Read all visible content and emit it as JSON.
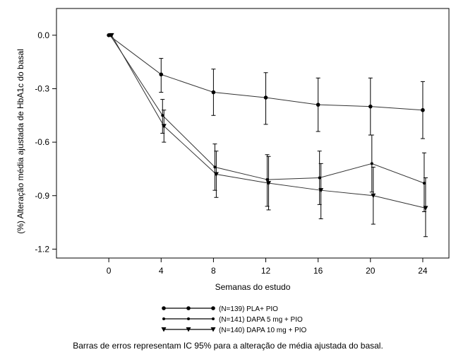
{
  "chart_data": {
    "type": "line",
    "title": "",
    "xlabel": "Semanas do estudo",
    "ylabel": "(%) Alteração média ajustada de HbA1c do basal",
    "xlim": [
      -4,
      26
    ],
    "ylim": [
      -1.25,
      0.15
    ],
    "x_ticks": [
      0,
      4,
      8,
      12,
      16,
      20,
      24
    ],
    "y_ticks": [
      0.0,
      -0.3,
      -0.6,
      -0.9,
      -1.2
    ],
    "y_tick_labels": [
      "0.0",
      "-0.3",
      "-0.6",
      "-0.9",
      "-1.2"
    ],
    "grid": false,
    "legend_placement": "bottom-center",
    "caption": "Barras de erros representam IC 95% para a alteração de média ajustada do basal.",
    "series": [
      {
        "name": "(N=139) PLA+ PIO",
        "marker": "circle",
        "x": [
          0,
          4,
          8,
          12,
          16,
          20,
          24
        ],
        "y": [
          0.0,
          -0.22,
          -0.32,
          -0.35,
          -0.39,
          -0.4,
          -0.42
        ],
        "err_low": [
          0.0,
          -0.32,
          -0.45,
          -0.5,
          -0.54,
          -0.56,
          -0.58
        ],
        "err_high": [
          0.0,
          -0.13,
          -0.19,
          -0.21,
          -0.24,
          -0.24,
          -0.26
        ]
      },
      {
        "name": "(N=141) DAPA 5 mg + PIO",
        "marker": "dot",
        "x": [
          0,
          4,
          8,
          12,
          16,
          20,
          24
        ],
        "y": [
          0.0,
          -0.45,
          -0.74,
          -0.81,
          -0.8,
          -0.72,
          -0.83
        ],
        "err_low": [
          0.0,
          -0.55,
          -0.87,
          -0.96,
          -0.95,
          -0.88,
          -0.99
        ],
        "err_high": [
          0.0,
          -0.36,
          -0.61,
          -0.67,
          -0.65,
          -0.56,
          -0.66
        ]
      },
      {
        "name": "(N=140) DAPA 10 mg + PIO",
        "marker": "triangle-down",
        "x": [
          0,
          4,
          8,
          12,
          16,
          20,
          24
        ],
        "y": [
          0.0,
          -0.51,
          -0.78,
          -0.83,
          -0.87,
          -0.9,
          -0.97
        ],
        "err_low": [
          0.0,
          -0.6,
          -0.91,
          -0.98,
          -1.03,
          -1.06,
          -1.13
        ],
        "err_high": [
          0.0,
          -0.42,
          -0.65,
          -0.68,
          -0.72,
          -0.74,
          -0.8
        ]
      }
    ]
  }
}
